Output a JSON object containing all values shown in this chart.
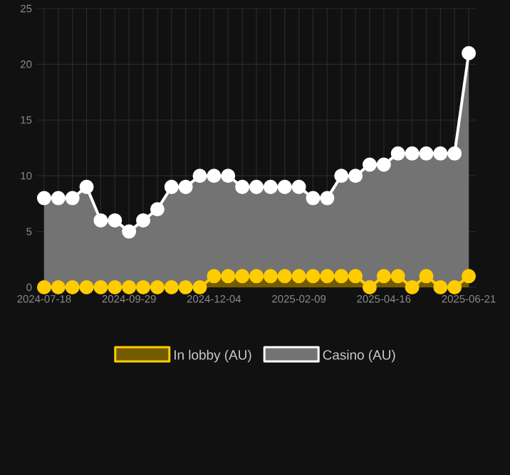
{
  "chart_data": {
    "type": "area",
    "categories": [
      "2024-07-18",
      null,
      null,
      null,
      null,
      null,
      "2024-09-29",
      null,
      null,
      null,
      null,
      null,
      "2024-12-04",
      null,
      null,
      null,
      null,
      null,
      "2025-02-09",
      null,
      null,
      null,
      null,
      null,
      "2025-04-16",
      null,
      null,
      null,
      null,
      null,
      "2025-06-21"
    ],
    "series": [
      {
        "name": "Casino (AU)",
        "color": "#ffffff",
        "values": [
          8,
          8,
          8,
          9,
          6,
          6,
          5,
          6,
          7,
          9,
          9,
          10,
          10,
          10,
          9,
          9,
          9,
          9,
          9,
          8,
          8,
          10,
          10,
          11,
          11,
          12,
          12,
          12,
          12,
          12,
          21
        ]
      },
      {
        "name": "In lobby (AU)",
        "color": "#ffcc00",
        "values": [
          0,
          0,
          0,
          0,
          0,
          0,
          0,
          0,
          0,
          0,
          0,
          0,
          1,
          1,
          1,
          1,
          1,
          1,
          1,
          1,
          1,
          1,
          1,
          0,
          1,
          1,
          0,
          1,
          0,
          0,
          1
        ]
      }
    ],
    "ylim": [
      0,
      25
    ],
    "yticks": [
      0,
      5,
      10,
      15,
      20,
      25
    ],
    "grid": true,
    "legend": "bottom",
    "marker": "circle"
  }
}
